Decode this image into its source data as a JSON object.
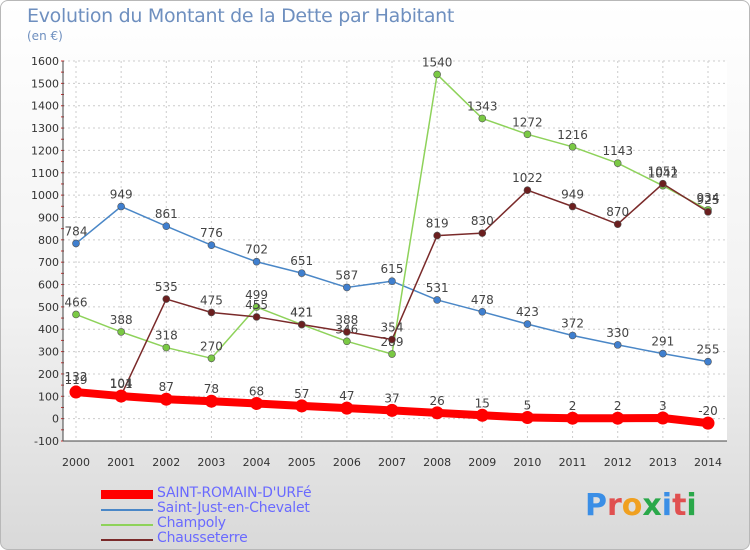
{
  "header": {
    "title": "Evolution du Montant de la Dette par Habitant",
    "unit": "(en €)"
  },
  "logo": {
    "text": "Proxiti",
    "colors": [
      "#3a8ee6",
      "#e05050",
      "#f0a020",
      "#2aa84a",
      "#3a8ee6",
      "#e05050",
      "#2aa84a"
    ]
  },
  "chart_data": {
    "type": "line",
    "title": "Evolution du Montant de la Dette par Habitant",
    "ylabel": "(en €)",
    "xlabel": "",
    "x": [
      "2000",
      "2001",
      "2002",
      "2003",
      "2004",
      "2005",
      "2006",
      "2007",
      "2008",
      "2009",
      "2010",
      "2011",
      "2012",
      "2013",
      "2014"
    ],
    "ylim": [
      -100,
      1600
    ],
    "yticks": [
      "-100",
      "0",
      "100",
      "200",
      "300",
      "400",
      "500",
      "600",
      "700",
      "800",
      "900",
      "1000",
      "1100",
      "1200",
      "1300",
      "1400",
      "1500",
      "1600"
    ],
    "grid": true,
    "legend_position": "bottom-left",
    "series": [
      {
        "name": "Saint-Just-en-Chevalet",
        "color": "#4a87c7",
        "marker": "#3f7fcf",
        "values": [
          784,
          949,
          861,
          776,
          702,
          651,
          587,
          615,
          531,
          478,
          423,
          372,
          330,
          291,
          255
        ],
        "labels": [
          "784",
          "949",
          "861",
          "776",
          "702",
          "651",
          "587",
          "615",
          "531",
          "478",
          "423",
          "372",
          "330",
          "291",
          "255"
        ]
      },
      {
        "name": "Champoly",
        "color": "#8ed25a",
        "marker": "#7ac944",
        "values": [
          466,
          388,
          318,
          270,
          499,
          421,
          346,
          289,
          1540,
          1343,
          1272,
          1216,
          1143,
          1042,
          934
        ],
        "labels": [
          "466",
          "388",
          "318",
          "270",
          "499",
          "421",
          "346",
          "289",
          "1540",
          "1343",
          "1272",
          "1216",
          "1143",
          "1042",
          "934"
        ]
      },
      {
        "name": "Chausseterre",
        "color": "#7a2a2a",
        "marker": "#6b1f1f",
        "values": [
          132,
          104,
          535,
          475,
          455,
          421,
          388,
          354,
          819,
          830,
          1022,
          949,
          870,
          1051,
          925
        ],
        "labels": [
          "132",
          "104",
          "535",
          "475",
          "455",
          "421",
          "388",
          "354",
          "819",
          "830",
          "1022",
          "949",
          "870",
          "1051",
          "925"
        ]
      },
      {
        "name": "SAINT-ROMAIN-D'URFé",
        "color": "#ff0000",
        "marker": "#ff0000",
        "values": [
          119,
          101,
          87,
          78,
          68,
          57,
          47,
          37,
          26,
          15,
          5,
          2,
          2,
          3,
          -20
        ],
        "labels": [
          "119",
          "101",
          "87",
          "78",
          "68",
          "57",
          "47",
          "37",
          "26",
          "15",
          "5",
          "2",
          "2",
          "3",
          "-20"
        ]
      }
    ],
    "legend": [
      {
        "name": "SAINT-ROMAIN-D'URFé",
        "color": "#ff0000",
        "thickness": "thick"
      },
      {
        "name": "Saint-Just-en-Chevalet",
        "color": "#4a87c7",
        "thickness": "thin"
      },
      {
        "name": "Champoly",
        "color": "#8ed25a",
        "thickness": "thin"
      },
      {
        "name": "Chausseterre",
        "color": "#7a2a2a",
        "thickness": "thin"
      }
    ]
  }
}
